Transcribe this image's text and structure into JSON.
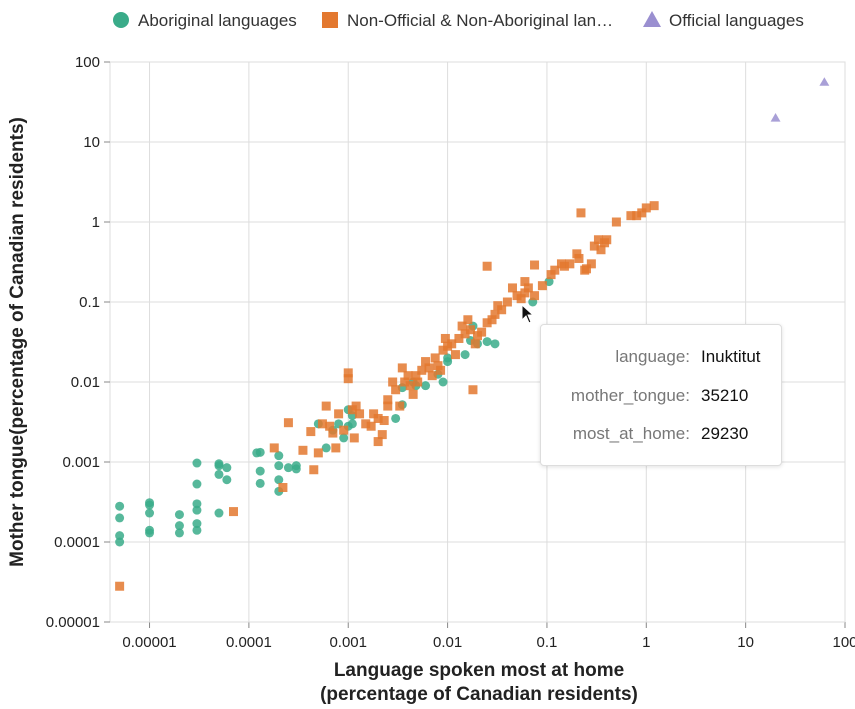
{
  "legend": [
    {
      "label": "Aboriginal languages",
      "shape": "circle",
      "color": "#3aab89"
    },
    {
      "label": "Non-Official & Non-Aboriginal lan…",
      "shape": "square",
      "color": "#e3782f"
    },
    {
      "label": "Official languages",
      "shape": "triangle",
      "color": "#9a8fd0"
    }
  ],
  "tooltip": {
    "rows": [
      {
        "key": "language:",
        "value": "Inuktitut"
      },
      {
        "key": "mother_tongue:",
        "value": "35210"
      },
      {
        "key": "most_at_home:",
        "value": "29230"
      }
    ]
  },
  "chart_data": {
    "type": "scatter",
    "xlabel": [
      "Language spoken most at home",
      "(percentage of Canadian residents)"
    ],
    "ylabel": "Mother tongue(percentage of Canadian residents)",
    "x_scale": "log",
    "y_scale": "log",
    "xlim": [
      4e-06,
      100
    ],
    "ylim": [
      1e-05,
      100
    ],
    "x_ticks": [
      1e-05,
      0.0001,
      0.001,
      0.01,
      0.1,
      1,
      10,
      100
    ],
    "x_tick_labels": [
      "0.00001",
      "0.0001",
      "0.001",
      "0.01",
      "0.1",
      "1",
      "10",
      "100"
    ],
    "y_ticks": [
      1e-05,
      0.0001,
      0.001,
      0.01,
      0.1,
      1,
      10,
      100
    ],
    "y_tick_labels": [
      "0.00001",
      "0.0001",
      "0.001",
      "0.01",
      "0.1",
      "1",
      "10",
      "100"
    ],
    "grid": true,
    "legend_position": "top",
    "series": [
      {
        "name": "Aboriginal languages",
        "shape": "circle",
        "color": "#3aab89",
        "points": [
          [
            5e-06,
            0.00028
          ],
          [
            5e-06,
            0.0002
          ],
          [
            5e-06,
            0.00012
          ],
          [
            5e-06,
            0.0001
          ],
          [
            1e-05,
            0.00031
          ],
          [
            1e-05,
            0.00029
          ],
          [
            1e-05,
            0.00023
          ],
          [
            1e-05,
            0.00014
          ],
          [
            1e-05,
            0.00013
          ],
          [
            2e-05,
            0.00022
          ],
          [
            2e-05,
            0.00016
          ],
          [
            2e-05,
            0.00013
          ],
          [
            3e-05,
            0.00053
          ],
          [
            3e-05,
            0.0003
          ],
          [
            3e-05,
            0.00025
          ],
          [
            3e-05,
            0.00017
          ],
          [
            3e-05,
            0.00014
          ],
          [
            3e-05,
            0.00097
          ],
          [
            5e-05,
            0.00095
          ],
          [
            5e-05,
            0.0009
          ],
          [
            5e-05,
            0.0007
          ],
          [
            5e-05,
            0.00023
          ],
          [
            6e-05,
            0.00085
          ],
          [
            6e-05,
            0.0006
          ],
          [
            0.00013,
            0.00132
          ],
          [
            0.00013,
            0.00077
          ],
          [
            0.00013,
            0.00054
          ],
          [
            0.00012,
            0.0013
          ],
          [
            0.0002,
            0.0012
          ],
          [
            0.0002,
            0.0009
          ],
          [
            0.0002,
            0.0006
          ],
          [
            0.0002,
            0.00043
          ],
          [
            0.00025,
            0.00085
          ],
          [
            0.0003,
            0.0009
          ],
          [
            0.0003,
            0.00082
          ],
          [
            0.0005,
            0.003
          ],
          [
            0.0006,
            0.0015
          ],
          [
            0.0007,
            0.0025
          ],
          [
            0.0008,
            0.003
          ],
          [
            0.0009,
            0.002
          ],
          [
            0.001,
            0.0028
          ],
          [
            0.0011,
            0.003
          ],
          [
            0.0011,
            0.0038
          ],
          [
            0.001,
            0.0045
          ],
          [
            0.003,
            0.0035
          ],
          [
            0.0035,
            0.0052
          ],
          [
            0.0035,
            0.0085
          ],
          [
            0.0045,
            0.01
          ],
          [
            0.0048,
            0.009
          ],
          [
            0.006,
            0.009
          ],
          [
            0.008,
            0.0125
          ],
          [
            0.009,
            0.01
          ],
          [
            0.01,
            0.018
          ],
          [
            0.01,
            0.02
          ],
          [
            0.015,
            0.022
          ],
          [
            0.017,
            0.033
          ],
          [
            0.018,
            0.05
          ],
          [
            0.02,
            0.03
          ],
          [
            0.025,
            0.032
          ],
          [
            0.03,
            0.03
          ],
          [
            0.072,
            0.1
          ],
          [
            0.105,
            0.18
          ]
        ]
      },
      {
        "name": "Non-Official & Non-Aboriginal languages",
        "shape": "square",
        "color": "#e3782f",
        "points": [
          [
            5e-06,
            2.8e-05
          ],
          [
            7e-05,
            0.00024
          ],
          [
            0.00022,
            0.00048
          ],
          [
            0.00025,
            0.0031
          ],
          [
            0.00018,
            0.0015
          ],
          [
            0.00035,
            0.0014
          ],
          [
            0.00042,
            0.0024
          ],
          [
            0.00045,
            0.0008
          ],
          [
            0.0005,
            0.0013
          ],
          [
            0.00055,
            0.003
          ],
          [
            0.0006,
            0.005
          ],
          [
            0.00065,
            0.0028
          ],
          [
            0.0007,
            0.0023
          ],
          [
            0.00075,
            0.0015
          ],
          [
            0.0008,
            0.004
          ],
          [
            0.0009,
            0.0025
          ],
          [
            0.001,
            0.013
          ],
          [
            0.001,
            0.011
          ],
          [
            0.0011,
            0.0045
          ],
          [
            0.00115,
            0.002
          ],
          [
            0.0012,
            0.005
          ],
          [
            0.0013,
            0.004
          ],
          [
            0.0015,
            0.003
          ],
          [
            0.0017,
            0.0028
          ],
          [
            0.0018,
            0.004
          ],
          [
            0.002,
            0.0035
          ],
          [
            0.002,
            0.0018
          ],
          [
            0.0022,
            0.0022
          ],
          [
            0.0025,
            0.006
          ],
          [
            0.0025,
            0.005
          ],
          [
            0.0023,
            0.0033
          ],
          [
            0.0028,
            0.01
          ],
          [
            0.003,
            0.008
          ],
          [
            0.0033,
            0.005
          ],
          [
            0.0035,
            0.015
          ],
          [
            0.0037,
            0.01
          ],
          [
            0.004,
            0.012
          ],
          [
            0.0042,
            0.009
          ],
          [
            0.0045,
            0.007
          ],
          [
            0.0048,
            0.012
          ],
          [
            0.005,
            0.01
          ],
          [
            0.0055,
            0.014
          ],
          [
            0.006,
            0.018
          ],
          [
            0.0065,
            0.015
          ],
          [
            0.007,
            0.012
          ],
          [
            0.0075,
            0.02
          ],
          [
            0.008,
            0.016
          ],
          [
            0.0085,
            0.014
          ],
          [
            0.009,
            0.025
          ],
          [
            0.0095,
            0.035
          ],
          [
            0.01,
            0.028
          ],
          [
            0.011,
            0.03
          ],
          [
            0.012,
            0.022
          ],
          [
            0.013,
            0.035
          ],
          [
            0.014,
            0.05
          ],
          [
            0.015,
            0.04
          ],
          [
            0.016,
            0.06
          ],
          [
            0.017,
            0.045
          ],
          [
            0.018,
            0.008
          ],
          [
            0.019,
            0.03
          ],
          [
            0.02,
            0.038
          ],
          [
            0.022,
            0.042
          ],
          [
            0.025,
            0.055
          ],
          [
            0.025,
            0.28
          ],
          [
            0.028,
            0.06
          ],
          [
            0.03,
            0.07
          ],
          [
            0.032,
            0.09
          ],
          [
            0.035,
            0.08
          ],
          [
            0.04,
            0.1
          ],
          [
            0.045,
            0.15
          ],
          [
            0.05,
            0.12
          ],
          [
            0.055,
            0.11
          ],
          [
            0.06,
            0.18
          ],
          [
            0.065,
            0.15
          ],
          [
            0.075,
            0.29
          ],
          [
            0.075,
            0.12
          ],
          [
            0.09,
            0.16
          ],
          [
            0.11,
            0.22
          ],
          [
            0.14,
            0.3
          ],
          [
            0.15,
            0.28
          ],
          [
            0.17,
            0.3
          ],
          [
            0.2,
            0.4
          ],
          [
            0.24,
            0.25
          ],
          [
            0.22,
            1.3
          ],
          [
            0.25,
            0.26
          ],
          [
            0.28,
            0.3
          ],
          [
            0.3,
            0.5
          ],
          [
            0.33,
            0.6
          ],
          [
            0.35,
            0.45
          ],
          [
            0.4,
            0.6
          ],
          [
            0.5,
            1.0
          ],
          [
            0.7,
            1.2
          ],
          [
            0.8,
            1.2
          ],
          [
            1.0,
            1.5
          ],
          [
            1.2,
            1.6
          ],
          [
            0.9,
            1.3
          ],
          [
            0.38,
            0.55
          ],
          [
            0.21,
            0.35
          ],
          [
            0.12,
            0.25
          ],
          [
            0.06,
            0.13
          ]
        ]
      },
      {
        "name": "Official languages",
        "shape": "triangle",
        "color": "#9a8fd0",
        "points": [
          [
            20,
            20
          ],
          [
            62,
            56
          ]
        ]
      }
    ]
  }
}
